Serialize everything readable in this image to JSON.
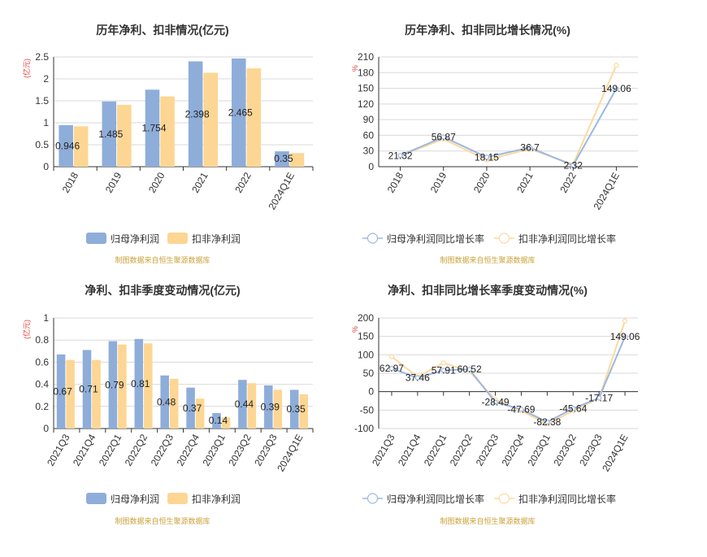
{
  "colors": {
    "blue": "#8eadd9",
    "orange": "#fdd693",
    "axis": "#333333",
    "grid": "#d9d9d9",
    "unit": "#e53935",
    "source": "#c9a23a",
    "title": "#333333",
    "line_blue": "#9db7e0",
    "line_orange": "#fdd9a0"
  },
  "charts": [
    {
      "title": "历年净利、扣非情况(亿元)",
      "unit": "(亿元)",
      "source": "制图数据来自恒生聚源数据库",
      "legend": [
        "归母净利润",
        "扣非净利润"
      ],
      "chart_data": {
        "type": "bar",
        "categories": [
          "2018",
          "2019",
          "2020",
          "2021",
          "2022",
          "2024Q1E"
        ],
        "series": [
          {
            "name": "归母净利润",
            "values": [
              0.946,
              1.485,
              1.754,
              2.398,
              2.465,
              0.35
            ],
            "labels": [
              "0.946",
              "1.485",
              "1.754",
              "2.398",
              "2.465",
              "0.35"
            ]
          },
          {
            "name": "扣非净利润",
            "values": [
              0.92,
              1.41,
              1.6,
              2.14,
              2.24,
              0.31
            ]
          }
        ],
        "ylim": [
          0,
          2.5
        ],
        "yticks": [
          "0",
          "0.5",
          "1",
          "1.5",
          "2",
          "2.5"
        ]
      }
    },
    {
      "title": "历年净利、扣非同比增长情况(%)",
      "unit": "%",
      "source": "制图数据来自恒生聚源数据库",
      "legend": [
        "归母净利润同比增长率",
        "扣非净利润同比增长率"
      ],
      "chart_data": {
        "type": "line",
        "categories": [
          "2018",
          "2019",
          "2020",
          "2021",
          "2022",
          "2024Q1E"
        ],
        "series": [
          {
            "name": "归母净利润同比增长率",
            "values": [
              21.32,
              56.87,
              18.15,
              36.7,
              2.32,
              149.06
            ],
            "labels": [
              "21.32",
              "56.87",
              "18.15",
              "36.7",
              "2.32",
              "149.06"
            ]
          },
          {
            "name": "扣非净利润同比增长率",
            "values": [
              21.0,
              53.0,
              13.0,
              34.0,
              4.5,
              194.0
            ]
          }
        ],
        "ylim": [
          0,
          210
        ],
        "yticks": [
          "0",
          "30",
          "60",
          "90",
          "120",
          "150",
          "180",
          "210"
        ]
      }
    },
    {
      "title": "净利、扣非季度变动情况(亿元)",
      "unit": "(亿元)",
      "source": "制图数据来自恒生聚源数据库",
      "legend": [
        "归母净利润",
        "扣非净利润"
      ],
      "chart_data": {
        "type": "bar",
        "categories": [
          "2021Q3",
          "2021Q4",
          "2022Q1",
          "2022Q2",
          "2022Q3",
          "2022Q4",
          "2023Q1",
          "2023Q2",
          "2023Q3",
          "2024Q1E"
        ],
        "series": [
          {
            "name": "归母净利润",
            "values": [
              0.67,
              0.71,
              0.79,
              0.81,
              0.48,
              0.37,
              0.14,
              0.44,
              0.39,
              0.35
            ],
            "labels": [
              "0.67",
              "0.71",
              "0.79",
              "0.81",
              "0.48",
              "0.37",
              "0.14",
              "0.44",
              "0.39",
              "0.35"
            ]
          },
          {
            "name": "扣非净利润",
            "values": [
              0.62,
              0.62,
              0.76,
              0.77,
              0.45,
              0.27,
              0.1,
              0.41,
              0.35,
              0.31
            ]
          }
        ],
        "ylim": [
          0,
          1
        ],
        "yticks": [
          "0",
          "0.2",
          "0.4",
          "0.6",
          "0.8",
          "1"
        ]
      }
    },
    {
      "title": "净利、扣非同比增长率季度变动情况(%)",
      "unit": "%",
      "source": "制图数据来自恒生聚源数据库",
      "legend": [
        "归母净利润同比增长率",
        "扣非净利润同比增长率"
      ],
      "chart_data": {
        "type": "line",
        "categories": [
          "2021Q3",
          "2021Q4",
          "2022Q1",
          "2022Q2",
          "2022Q3",
          "2022Q4",
          "2023Q1",
          "2023Q2",
          "2023Q3",
          "2024Q1E"
        ],
        "series": [
          {
            "name": "归母净利润同比增长率",
            "values": [
              62.97,
              37.46,
              57.91,
              60.52,
              -28.49,
              -47.69,
              -82.38,
              -45.64,
              -17.17,
              149.06
            ],
            "labels": [
              "62.97",
              "37.46",
              "57.91",
              "60.52",
              "-28.49",
              "-47.69",
              "-82.38",
              "-45.64",
              "-17.17",
              "149.06"
            ]
          },
          {
            "name": "扣非净利润同比增长率",
            "values": [
              95,
              40,
              78,
              55,
              -22,
              -52,
              -88,
              -52,
              -18,
              192
            ]
          }
        ],
        "ylim": [
          -100,
          200
        ],
        "yticks": [
          "-100",
          "-50",
          "0",
          "50",
          "100",
          "150",
          "200"
        ]
      }
    }
  ]
}
